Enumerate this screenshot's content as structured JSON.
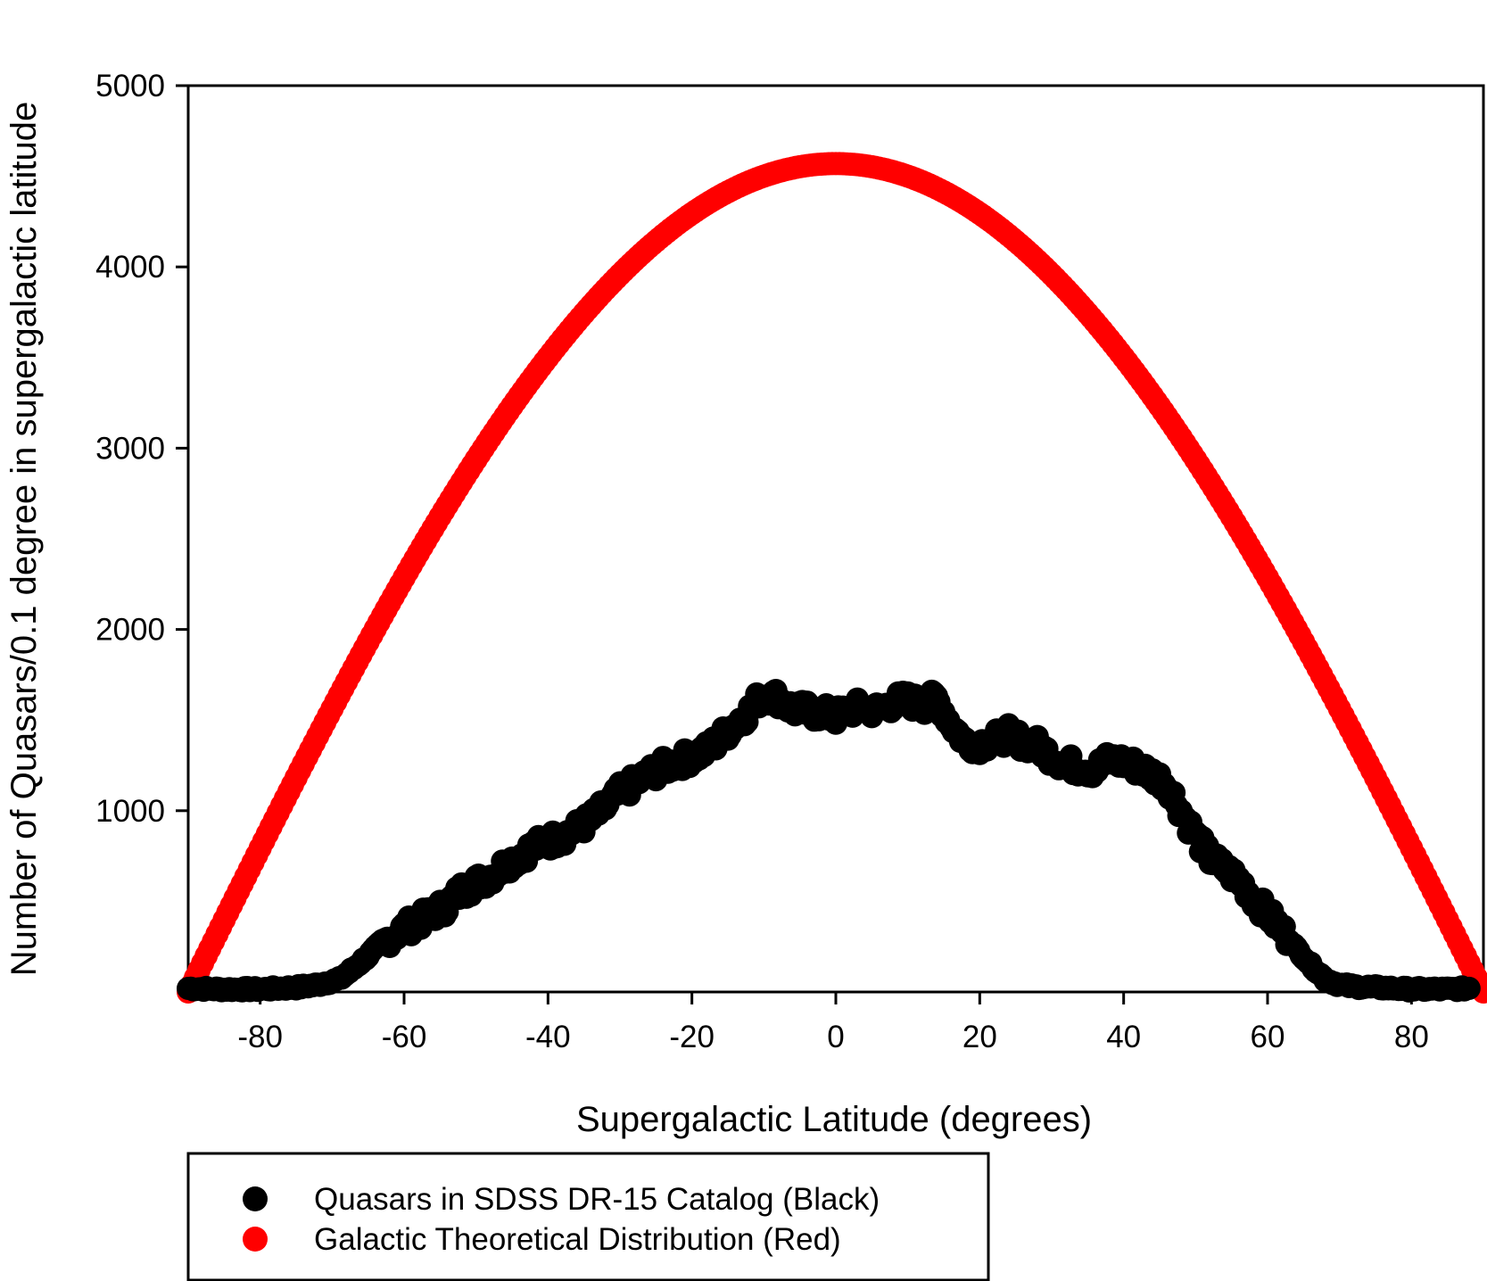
{
  "chart_data": {
    "type": "scatter",
    "title": "",
    "xlabel": "Supergalactic Latitude (degrees)",
    "ylabel": "Number of Quasars/0.1 degree in supergalactic latitude",
    "xlim": [
      -90,
      90
    ],
    "ylim": [
      0,
      5000
    ],
    "xticks": [
      -80,
      -60,
      -40,
      -20,
      0,
      20,
      40,
      60,
      80
    ],
    "xtick_labels": [
      "-80",
      "-60",
      "-40",
      "-20",
      "0",
      "20",
      "40",
      "60",
      "80"
    ],
    "yticks": [
      1000,
      2000,
      3000,
      4000,
      5000
    ],
    "ytick_labels": [
      "1000",
      "2000",
      "3000",
      "4000",
      "5000"
    ],
    "grid": false,
    "legend_position": "bottom-left below plot",
    "series": [
      {
        "name": "Quasars in SDSS DR-15 Catalog (Black)",
        "color": "#000000",
        "x": [
          -90,
          -85,
          -80,
          -75,
          -72,
          -69,
          -67,
          -65,
          -63,
          -60,
          -57,
          -54,
          -52,
          -50,
          -48,
          -46,
          -44,
          -42,
          -40,
          -38,
          -36,
          -34,
          -32,
          -30,
          -28,
          -26,
          -24,
          -22,
          -20,
          -18,
          -16,
          -14,
          -12,
          -10,
          -8,
          -6,
          -4,
          -2,
          0,
          2,
          4,
          6,
          8,
          10,
          12,
          14,
          16,
          18,
          20,
          22,
          24,
          26,
          28,
          30,
          32,
          34,
          36,
          38,
          40,
          42,
          44,
          46,
          48,
          50,
          52,
          54,
          56,
          58,
          60,
          62,
          64,
          66,
          68,
          70,
          72,
          75,
          80,
          85,
          88
        ],
        "values": [
          20,
          15,
          15,
          25,
          40,
          70,
          130,
          200,
          280,
          350,
          410,
          480,
          560,
          600,
          640,
          700,
          750,
          800,
          830,
          860,
          900,
          950,
          1020,
          1100,
          1150,
          1200,
          1240,
          1270,
          1300,
          1330,
          1400,
          1480,
          1550,
          1650,
          1620,
          1560,
          1550,
          1540,
          1520,
          1560,
          1570,
          1550,
          1600,
          1610,
          1580,
          1620,
          1480,
          1380,
          1370,
          1390,
          1420,
          1380,
          1360,
          1300,
          1260,
          1240,
          1230,
          1280,
          1270,
          1240,
          1200,
          1150,
          1000,
          860,
          740,
          680,
          620,
          520,
          430,
          340,
          240,
          150,
          70,
          40,
          30,
          25,
          15,
          15,
          20
        ]
      },
      {
        "name": "Galactic Theoretical Distribution (Red)",
        "color": "#ff0000",
        "function": "4570 * cos(latitude)",
        "peak": 4570
      }
    ]
  }
}
